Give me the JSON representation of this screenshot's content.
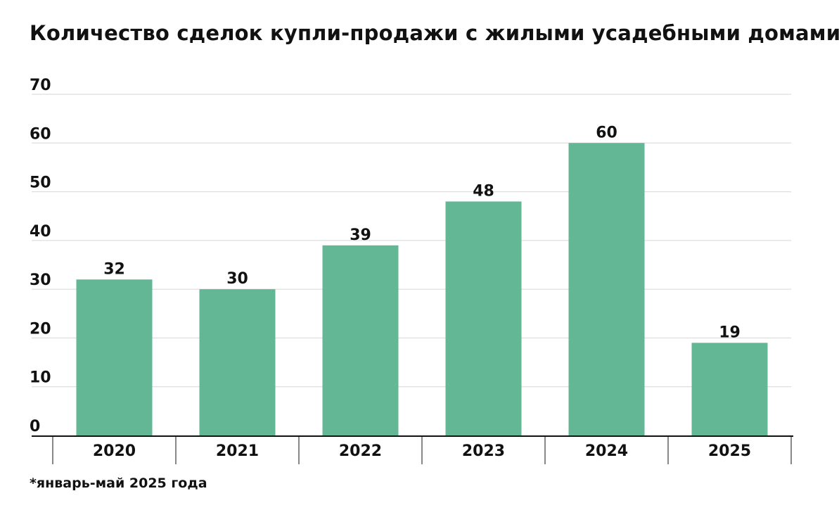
{
  "title": "Количество сделок купли-продажи с жилыми усадебными домами",
  "footnote": "*январь-май 2025 года",
  "colors": {
    "bar": "#63b795",
    "grid": "#d6d6d6",
    "axis": "#111111"
  },
  "chart_data": {
    "type": "bar",
    "categories": [
      "2020",
      "2021",
      "2022",
      "2023",
      "2024",
      "2025"
    ],
    "values": [
      32,
      30,
      39,
      48,
      60,
      19
    ],
    "ylim": [
      0,
      70
    ],
    "yticks": [
      0,
      10,
      20,
      30,
      40,
      50,
      60,
      70
    ],
    "grid": true,
    "data_labels": true
  }
}
